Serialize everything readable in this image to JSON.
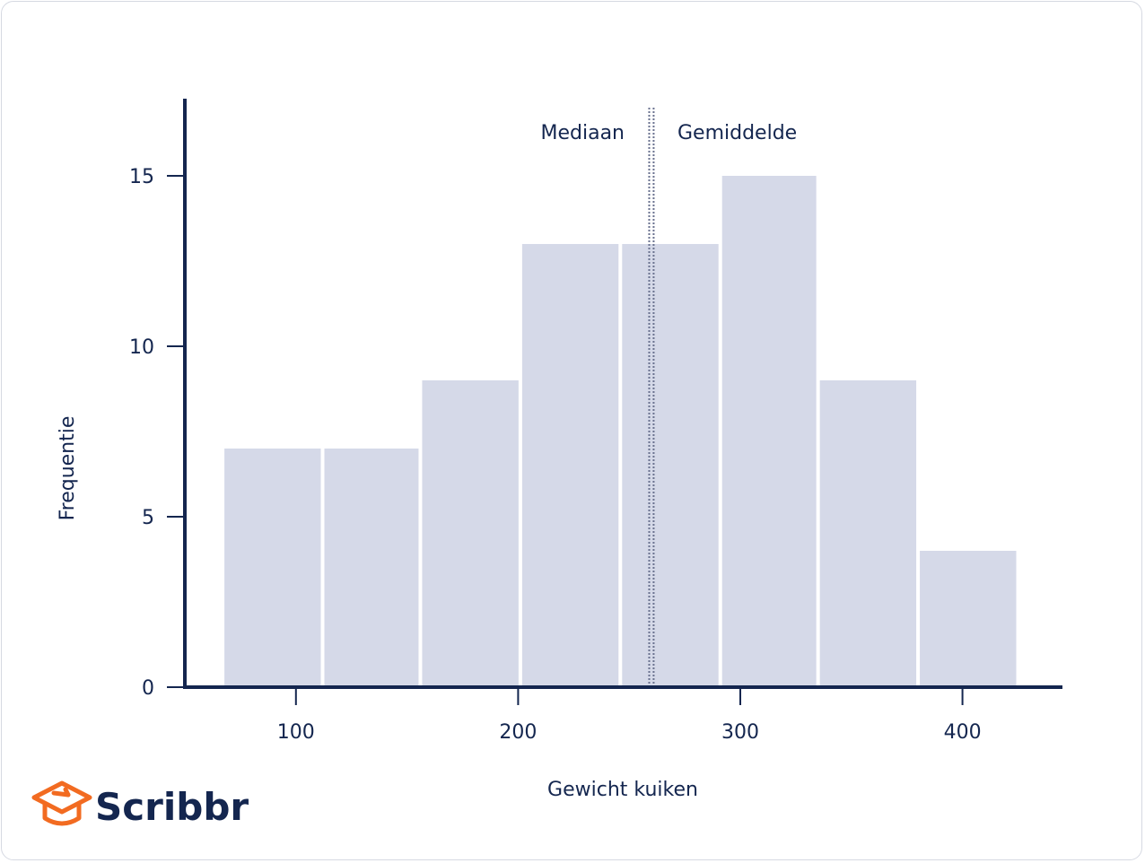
{
  "chart_data": {
    "type": "bar",
    "subtype": "histogram",
    "bins": [
      {
        "start": 67,
        "end": 112,
        "count": 7
      },
      {
        "start": 112,
        "end": 156,
        "count": 7
      },
      {
        "start": 156,
        "end": 201,
        "count": 9
      },
      {
        "start": 201,
        "end": 246,
        "count": 13
      },
      {
        "start": 246,
        "end": 291,
        "count": 13
      },
      {
        "start": 291,
        "end": 335,
        "count": 15
      },
      {
        "start": 335,
        "end": 380,
        "count": 9
      },
      {
        "start": 380,
        "end": 425,
        "count": 4
      }
    ],
    "xlabel": "Gewicht kuiken",
    "ylabel": "Frequentie",
    "xticks": [
      100,
      200,
      300,
      400
    ],
    "yticks": [
      0,
      5,
      10,
      15
    ],
    "xlim": [
      50,
      445
    ],
    "ylim": [
      0,
      17
    ],
    "bar_color": "#d5d9e8",
    "axis_color": "#14264f",
    "reference_lines": [
      {
        "name": "Mediaan",
        "value": 259
      },
      {
        "name": "Gemiddelde",
        "value": 261
      }
    ],
    "grid": false
  },
  "brand": {
    "name": "Scribbr",
    "accent": "#f26b21"
  }
}
